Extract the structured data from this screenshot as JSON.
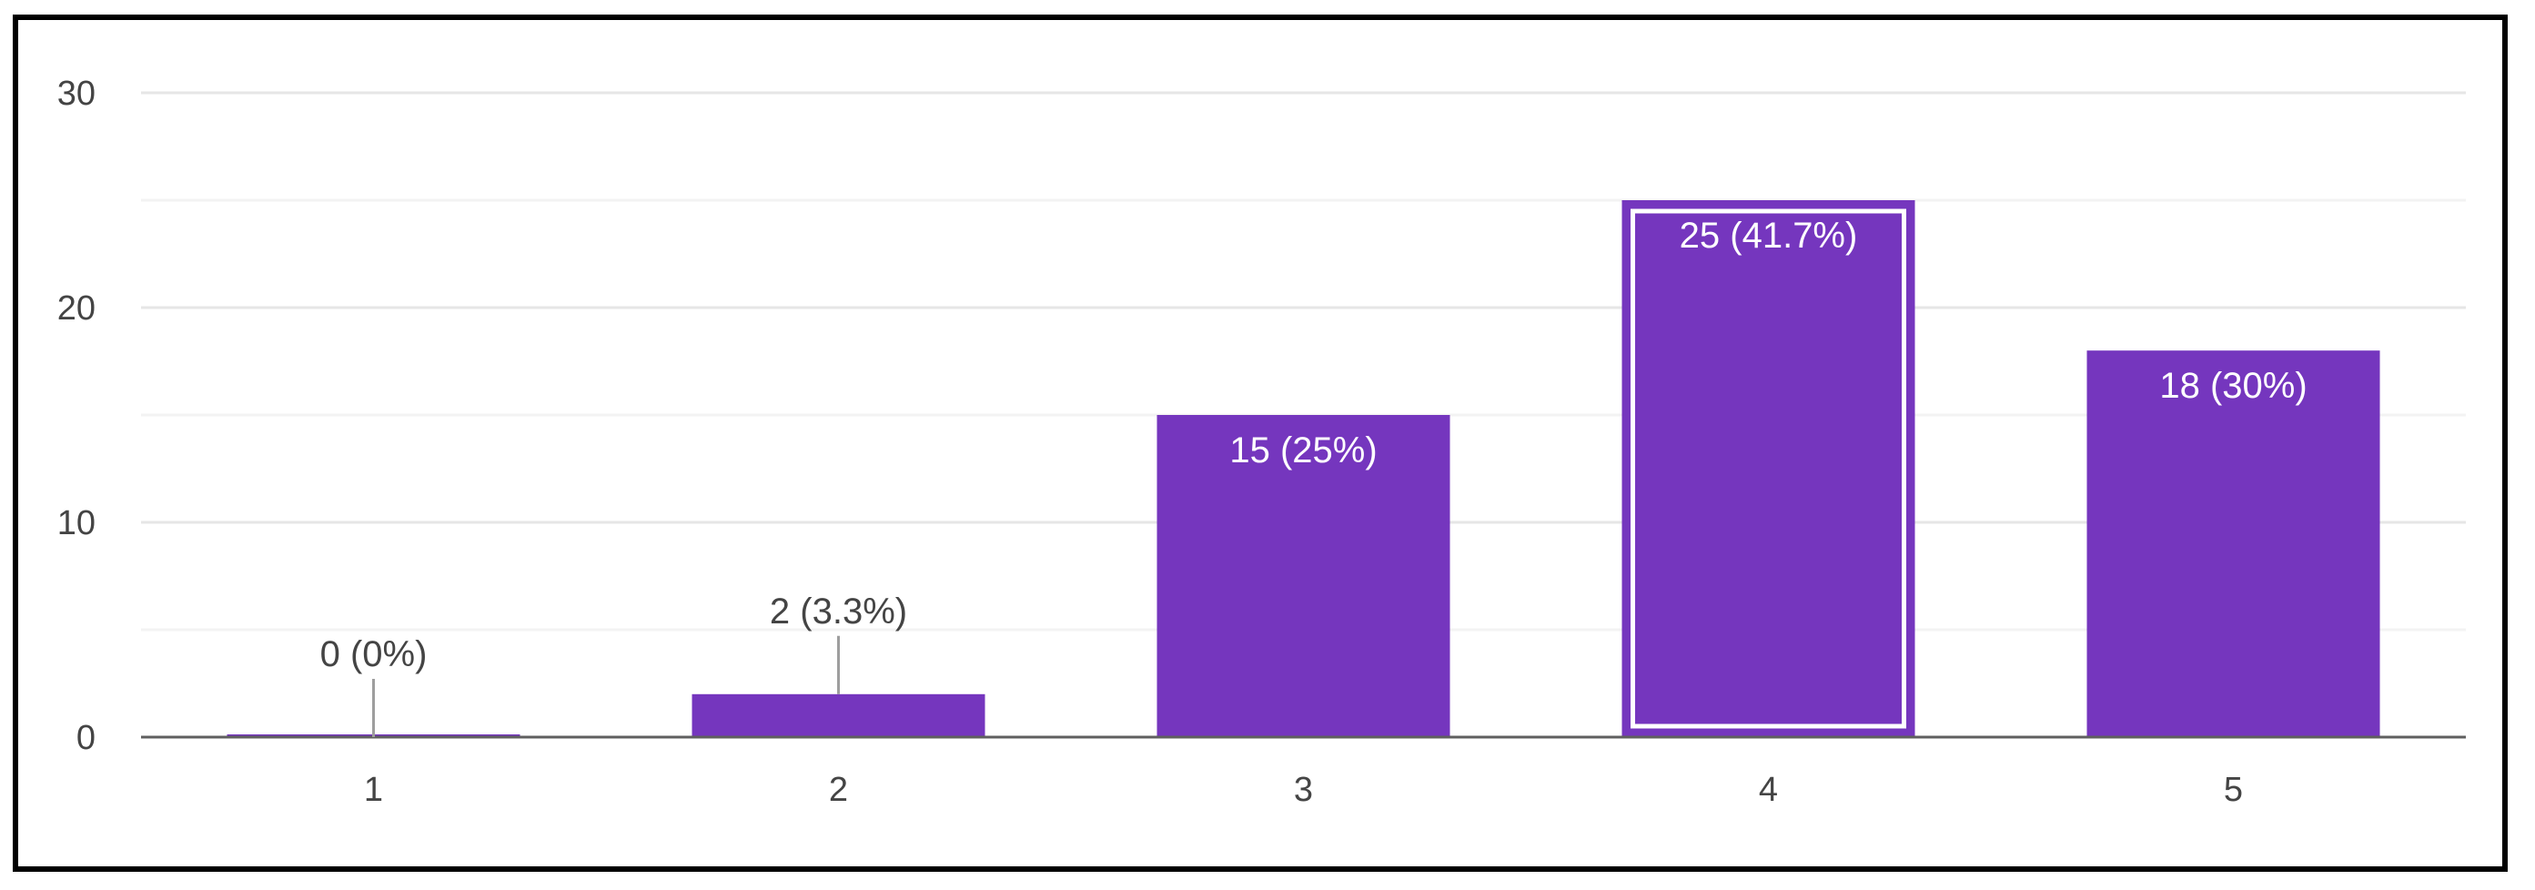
{
  "chart_data": {
    "type": "bar",
    "title": "",
    "xlabel": "",
    "ylabel": "",
    "categories": [
      "1",
      "2",
      "3",
      "4",
      "5"
    ],
    "values": [
      0,
      2,
      15,
      25,
      18
    ],
    "data_labels": [
      "0 (0%)",
      "2 (3.3%)",
      "15 (25%)",
      "25 (41.7%)",
      "18 (30%)"
    ],
    "highlighted_index": 3,
    "ylim": [
      0,
      30
    ],
    "yticks": [
      "0",
      "10",
      "20",
      "30"
    ],
    "grid": true,
    "legend": "none",
    "colors": {
      "bar": "#7536BE",
      "gridline_major": "#E6E6E6",
      "gridline_minor": "#F3F3F3",
      "axis": "#5F5F5F",
      "label_outside": "#444444",
      "label_inside": "#FFFFFF"
    }
  }
}
